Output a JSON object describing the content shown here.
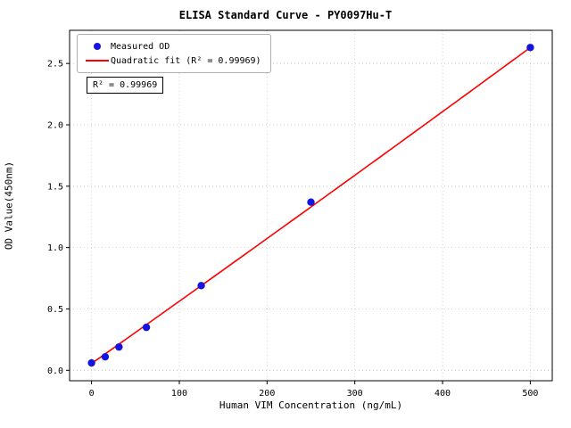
{
  "figure": {
    "title": "ELISA Standard Curve - PY0097Hu-T",
    "xlabel": "Human VIM Concentration (ng/mL)",
    "ylabel": "OD Value(450nm)",
    "annotation_r2": "R² = 0.99969",
    "legend": {
      "measured_label": "Measured OD",
      "fit_label": "Quadratic fit (R² = 0.99969)"
    }
  },
  "chart_data": {
    "type": "scatter",
    "title": "ELISA Standard Curve - PY0097Hu-T",
    "xlabel": "Human VIM Concentration (ng/mL)",
    "ylabel": "OD Value(450nm)",
    "series": [
      {
        "name": "Measured OD",
        "x": [
          0,
          15.6,
          31.25,
          62.5,
          125,
          250,
          500
        ],
        "y": [
          0.06,
          0.11,
          0.19,
          0.35,
          0.69,
          1.37,
          2.63
        ]
      }
    ],
    "fit": {
      "name": "Quadratic fit",
      "type": "quadratic",
      "coeffs": {
        "a": 1.9e-07,
        "b": 0.005055,
        "c": 0.055
      },
      "x_range": [
        0,
        500
      ],
      "r_squared": 0.99969
    },
    "xlim": [
      -25,
      525
    ],
    "ylim": [
      -0.085,
      2.77
    ],
    "xticks": [
      0,
      100,
      200,
      300,
      400,
      500
    ],
    "xtick_labels": [
      "0",
      "100",
      "200",
      "300",
      "400",
      "500"
    ],
    "yticks": [
      0,
      0.5,
      1.0,
      1.5,
      2.0,
      2.5
    ],
    "ytick_labels": [
      "0.0",
      "0.5",
      "1.0",
      "1.5",
      "2.0",
      "2.5"
    ],
    "grid": true,
    "grid_style": "dotted",
    "legend_position": "upper left",
    "colors": {
      "points": "#1414e0",
      "fit_line": "#ff0000",
      "grid": "#c9c9c9",
      "spine": "#000000"
    }
  }
}
